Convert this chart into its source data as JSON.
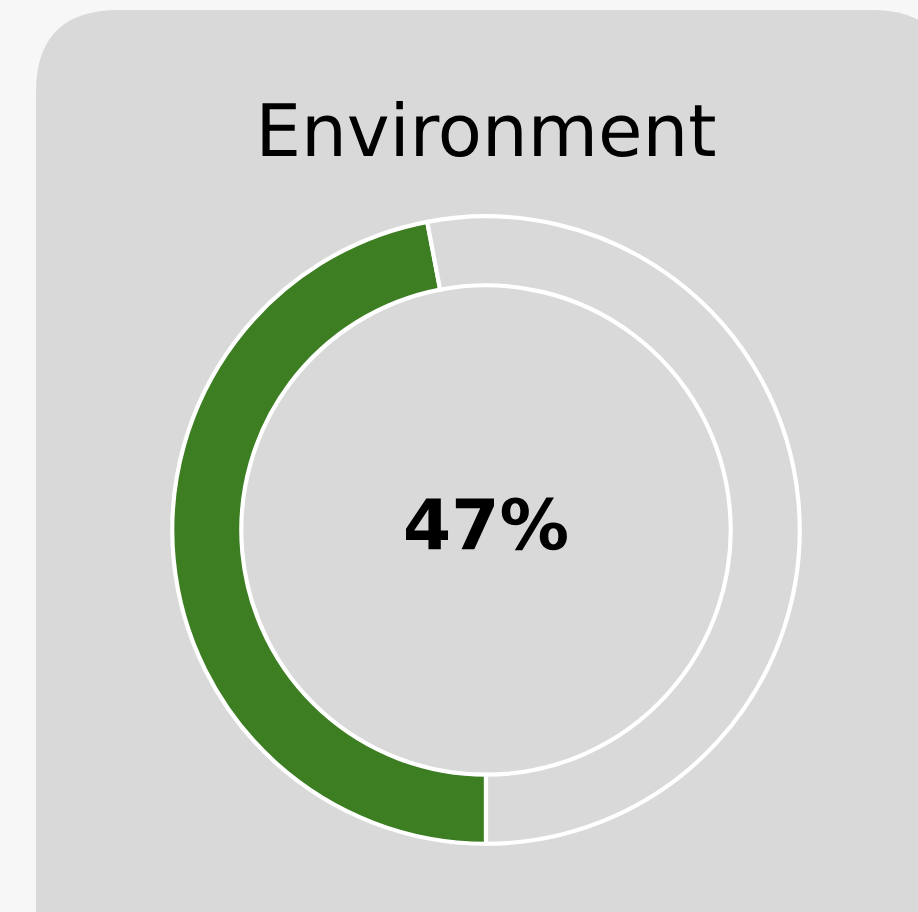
{
  "chart_data": {
    "type": "donut",
    "title": "Environment",
    "categories": [
      null,
      null
    ],
    "values": [
      47,
      53
    ],
    "colors": [
      "#3d7e23",
      "#d9d9d9"
    ],
    "annotations": [
      "47%"
    ]
  }
}
